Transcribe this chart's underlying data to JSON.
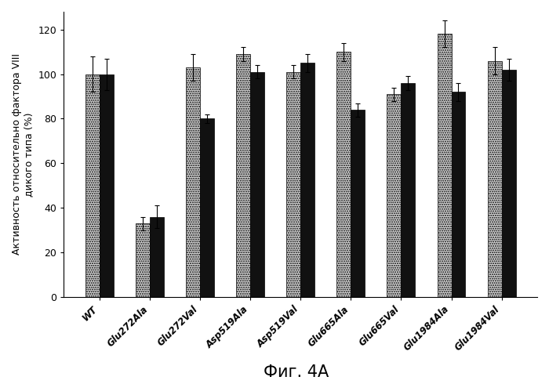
{
  "categories": [
    "WT",
    "Glu272Ala",
    "Glu272Val",
    "Asp519Ala",
    "Asp519Val",
    "Glu665Ala",
    "Glu665Val",
    "Glu1984Ala",
    "Glu1984Val"
  ],
  "gray_values": [
    100,
    33,
    103,
    109,
    101,
    110,
    91,
    118,
    106
  ],
  "black_values": [
    100,
    36,
    80,
    101,
    105,
    84,
    96,
    92,
    102
  ],
  "gray_errors": [
    8,
    3,
    6,
    3,
    3,
    4,
    3,
    6,
    6
  ],
  "black_errors": [
    7,
    5,
    2,
    3,
    4,
    3,
    3,
    4,
    5
  ],
  "ylabel_line1": "Активность относительно фактора VIII",
  "ylabel_line2": "дикого типа (%)",
  "xlabel_fig": "Фиг. 4А",
  "ylim": [
    0,
    128
  ],
  "yticks": [
    0,
    20,
    40,
    60,
    80,
    100,
    120
  ],
  "bar_width": 0.28,
  "gray_color": "#d8d8d8",
  "black_color": "#111111",
  "background": "#ffffff",
  "figsize": [
    7.0,
    4.9
  ],
  "dpi": 100
}
